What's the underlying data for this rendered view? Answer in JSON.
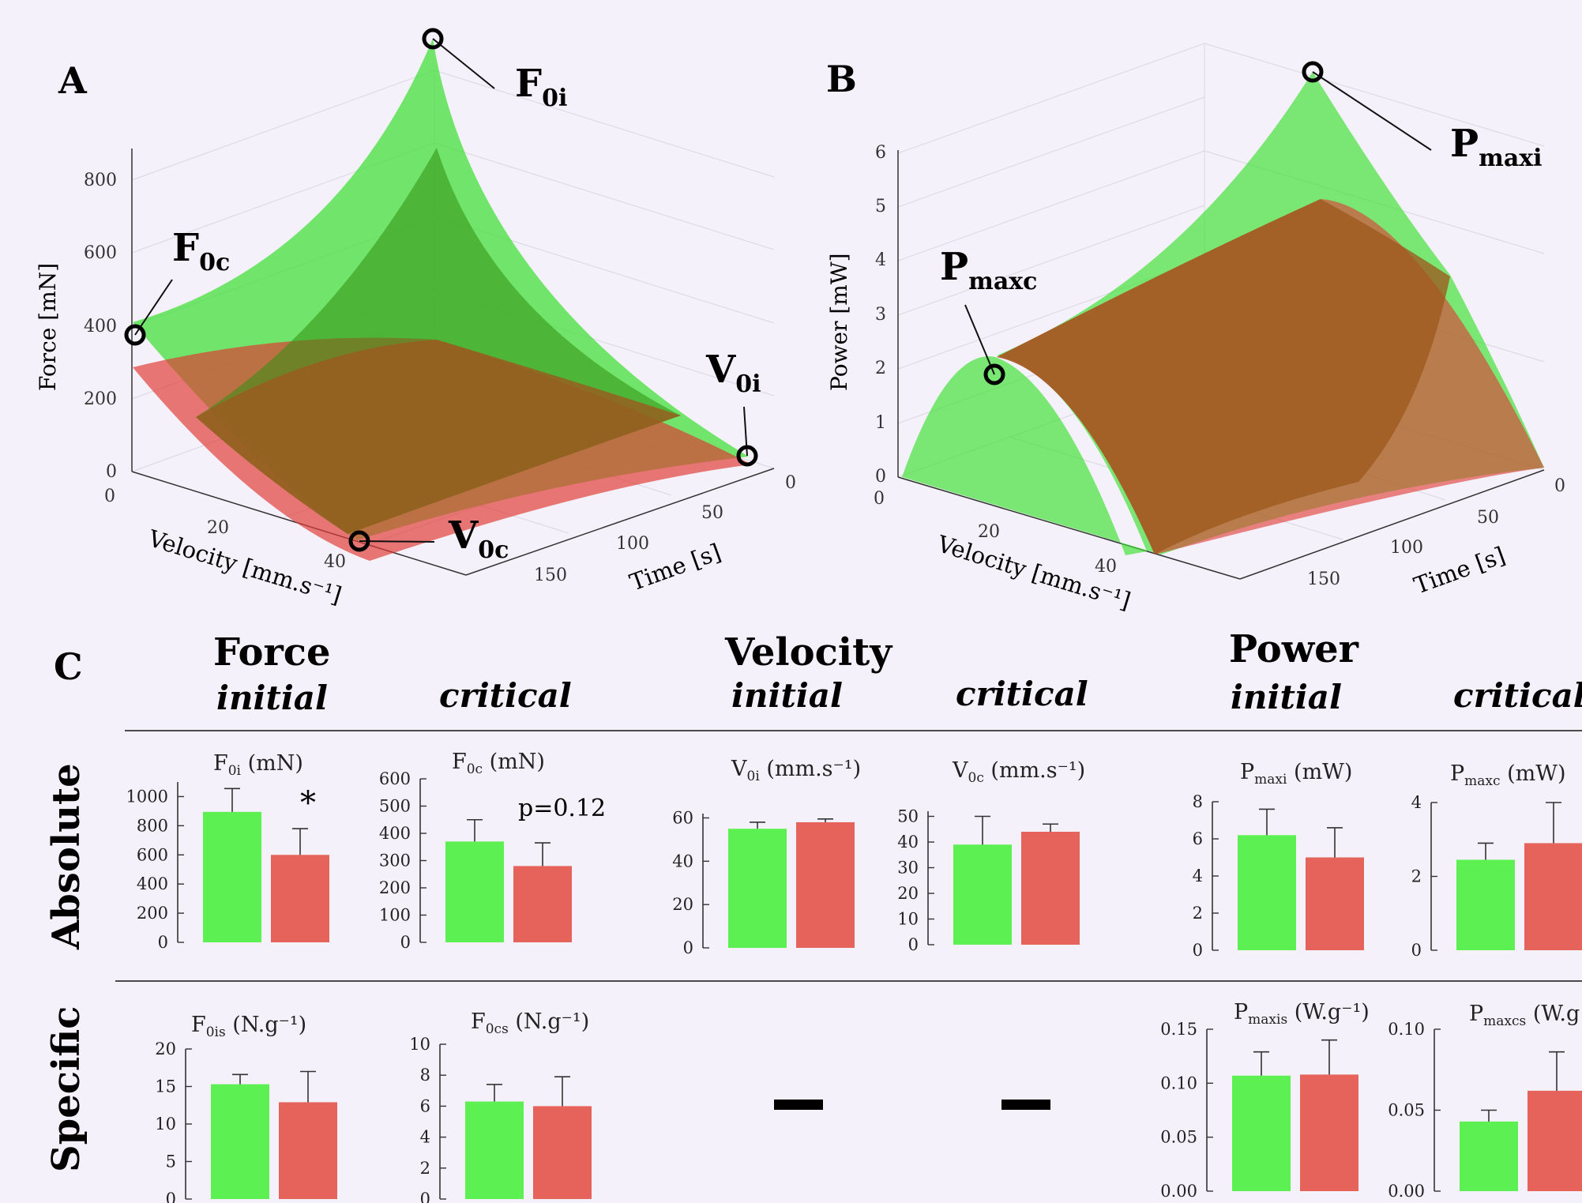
{
  "panels": {
    "A": {
      "letter": "A",
      "zlabel": "Force [mN]",
      "xlabel": "Velocity [mm.s⁻¹]",
      "ylabel": "Time [s]",
      "zticks": [
        "0",
        "200",
        "400",
        "600",
        "800"
      ],
      "xticks": [
        "0",
        "20",
        "40"
      ],
      "yticks": [
        "0",
        "50",
        "100",
        "150"
      ],
      "annotations": [
        {
          "main": "F",
          "sub": "0i"
        },
        {
          "main": "F",
          "sub": "0c"
        },
        {
          "main": "V",
          "sub": "0i"
        },
        {
          "main": "V",
          "sub": "0c"
        }
      ]
    },
    "B": {
      "letter": "B",
      "zlabel": "Power [mW]",
      "xlabel": "Velocity [mm.s⁻¹]",
      "ylabel": "Time [s]",
      "zticks": [
        "0",
        "1",
        "2",
        "3",
        "4",
        "5",
        "6"
      ],
      "xticks": [
        "0",
        "20",
        "40"
      ],
      "yticks": [
        "0",
        "50",
        "100",
        "150"
      ],
      "annotations": [
        {
          "main": "P",
          "sub": "maxi"
        },
        {
          "main": "P",
          "sub": "maxc"
        }
      ]
    },
    "C": {
      "letter": "C",
      "groups": [
        {
          "title": "Force",
          "sub1": "initial",
          "sub2": "critical"
        },
        {
          "title": "Velocity",
          "sub1": "initial",
          "sub2": "critical"
        },
        {
          "title": "Power",
          "sub1": "initial",
          "sub2": "critical"
        }
      ],
      "rows": [
        "Absolute",
        "Specific"
      ],
      "dash": "—",
      "significance": "*",
      "pvalue": "p=0.12"
    }
  },
  "colors": {
    "green": "#5cf052",
    "red": "#e5635b",
    "green_surface": "#3fe033",
    "red_surface": "#e03a33",
    "dark_surface": "#9c5a1e"
  },
  "chart_data": [
    {
      "type": "bar",
      "panel": "C-absolute",
      "categories": [
        "initial",
        "critical"
      ],
      "charts": [
        {
          "title_main": "F",
          "title_sub": "0i",
          "title_unit": "(mN)",
          "yticks": [
            "0",
            "200",
            "400",
            "600",
            "800",
            "1000"
          ],
          "ylim": [
            0,
            1100
          ],
          "values": [
            895,
            600
          ],
          "errors": [
            160,
            180
          ]
        },
        {
          "title_main": "F",
          "title_sub": "0c",
          "title_unit": "(mN)",
          "yticks": [
            "0",
            "100",
            "200",
            "300",
            "400",
            "500",
            "600"
          ],
          "ylim": [
            0,
            600
          ],
          "values": [
            370,
            280
          ],
          "errors": [
            80,
            85
          ]
        },
        {
          "title_main": "V",
          "title_sub": "0i",
          "title_unit": "(mm.s⁻¹)",
          "yticks": [
            "0",
            "20",
            "40",
            "60"
          ],
          "ylim": [
            0,
            62
          ],
          "values": [
            55,
            58
          ],
          "errors": [
            3,
            1.5
          ]
        },
        {
          "title_main": "V",
          "title_sub": "0c",
          "title_unit": "(mm.s⁻¹)",
          "yticks": [
            "0",
            "10",
            "20",
            "30",
            "40",
            "50"
          ],
          "ylim": [
            0,
            52
          ],
          "values": [
            39,
            44
          ],
          "errors": [
            11,
            3
          ]
        },
        {
          "title_main": "P",
          "title_sub": "maxi",
          "title_unit": "(mW)",
          "yticks": [
            "0",
            "2",
            "4",
            "6",
            "8"
          ],
          "ylim": [
            0,
            8
          ],
          "values": [
            6.2,
            5.0
          ],
          "errors": [
            1.4,
            1.6
          ]
        },
        {
          "title_main": "P",
          "title_sub": "maxc",
          "title_unit": "(mW)",
          "yticks": [
            "0",
            "2",
            "4"
          ],
          "ylim": [
            0,
            4
          ],
          "values": [
            2.45,
            2.9
          ],
          "errors": [
            0.45,
            1.1
          ]
        }
      ]
    },
    {
      "type": "bar",
      "panel": "C-specific",
      "categories": [
        "initial",
        "critical"
      ],
      "charts": [
        {
          "title_main": "F",
          "title_sub": "0is",
          "title_unit": "(N.g⁻¹)",
          "yticks": [
            "0",
            "5",
            "10",
            "15",
            "20"
          ],
          "ylim": [
            0,
            20
          ],
          "values": [
            15.3,
            12.9
          ],
          "errors": [
            1.3,
            4.1
          ]
        },
        {
          "title_main": "F",
          "title_sub": "0cs",
          "title_unit": "(N.g⁻¹)",
          "yticks": [
            "0",
            "2",
            "4",
            "6",
            "8",
            "10"
          ],
          "ylim": [
            0,
            10
          ],
          "values": [
            6.3,
            6.0
          ],
          "errors": [
            1.1,
            1.9
          ]
        },
        {
          "title_main": "P",
          "title_sub": "maxis",
          "title_unit": "(W.g⁻¹)",
          "yticks": [
            "0.00",
            "0.05",
            "0.10",
            "0.15"
          ],
          "ylim": [
            0,
            0.15
          ],
          "values": [
            0.107,
            0.108
          ],
          "errors": [
            0.022,
            0.032
          ]
        },
        {
          "title_main": "P",
          "title_sub": "maxcs",
          "title_unit": "(W.g",
          "yticks": [
            "0.00",
            "0.05",
            "0.10"
          ],
          "ylim": [
            0,
            0.1
          ],
          "values": [
            0.043,
            0.062
          ],
          "errors": [
            0.007,
            0.024
          ]
        }
      ]
    }
  ]
}
